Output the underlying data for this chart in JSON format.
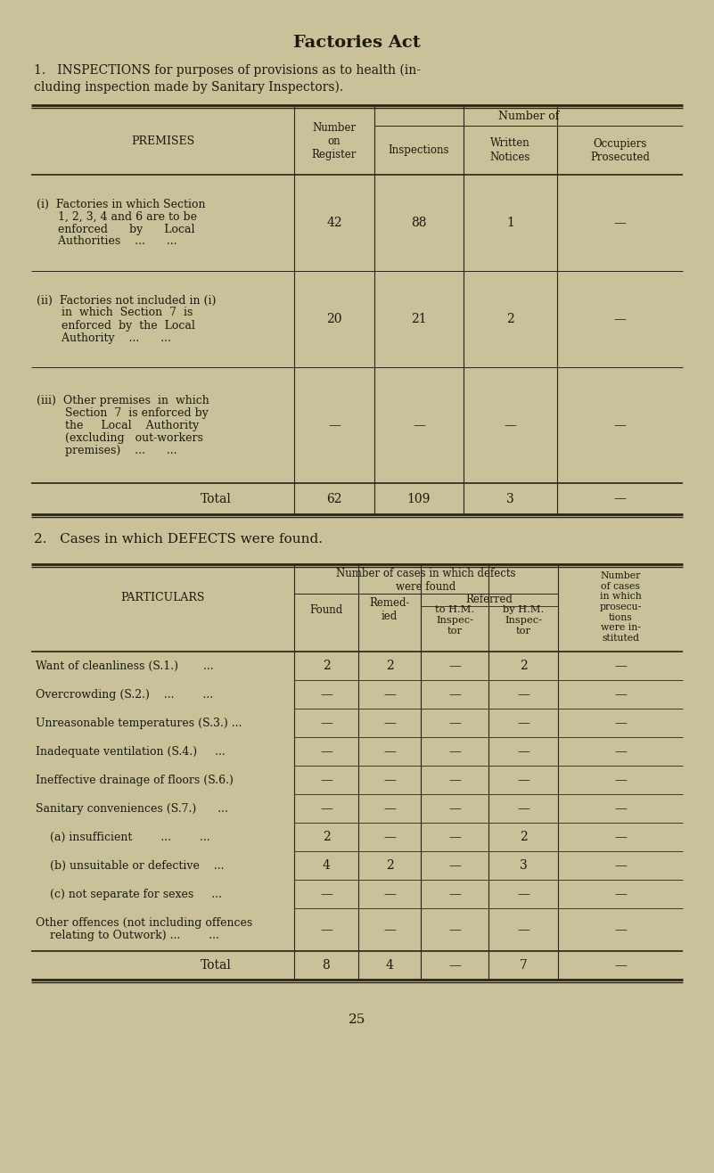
{
  "bg_color": "#c9c19a",
  "text_color": "#1a1a0a",
  "title": "Factories Act",
  "section1_heading_line1": "1.   INSPECTIONS for purposes of provisions as to health (in-",
  "section1_heading_line2": "cluding inspection made by Sanitary Inspectors).",
  "section2_heading": "2.   Cases in which DEFECTS were found.",
  "page_number": "25",
  "table1": {
    "col_header_group": "Number of",
    "row_label_header": "PREMISES",
    "rows": [
      {
        "label_lines": [
          "(i)  Factories in which Section",
          "      1, 2, 3, 4 and 6 are to be",
          "      enforced      by      Local",
          "      Authorities    ...      ..."
        ],
        "values": [
          "42",
          "88",
          "1",
          "—"
        ]
      },
      {
        "label_lines": [
          "(ii)  Factories not included in (i)",
          "       in  which  Section  7  is",
          "       enforced  by  the  Local",
          "       Authority    ...      ..."
        ],
        "values": [
          "20",
          "21",
          "2",
          "—"
        ]
      },
      {
        "label_lines": [
          "(iii)  Other premises  in  which",
          "        Section  7  is enforced by",
          "        the     Local    Authority",
          "        (excluding   out-workers",
          "        premises)    ...      ..."
        ],
        "values": [
          "—",
          "—",
          "—",
          "—"
        ]
      }
    ],
    "total_row": {
      "label": "Total",
      "values": [
        "62",
        "109",
        "3",
        "—"
      ]
    }
  },
  "table2": {
    "col_header_group1": "Number of cases in which defects",
    "col_header_group1b": "were found",
    "col_header_group2_lines": [
      "Number",
      "of cases",
      "in which",
      "prosecu-",
      "tions",
      "were in-",
      "stituted"
    ],
    "referred_label": "Referred",
    "row_label_header": "PARTICULARS",
    "rows": [
      {
        "label_lines": [
          "Want of cleanliness (S.1.)       ..."
        ],
        "values": [
          "2",
          "2",
          "—",
          "2",
          "—"
        ]
      },
      {
        "label_lines": [
          "Overcrowding (S.2.)    ...        ..."
        ],
        "values": [
          "—",
          "—",
          "—",
          "—",
          "—"
        ]
      },
      {
        "label_lines": [
          "Unreasonable temperatures (S.3.) ..."
        ],
        "values": [
          "—",
          "—",
          "—",
          "—",
          "—"
        ]
      },
      {
        "label_lines": [
          "Inadequate ventilation (S.4.)     ..."
        ],
        "values": [
          "—",
          "—",
          "—",
          "—",
          "—"
        ]
      },
      {
        "label_lines": [
          "Ineffective drainage of floors (S.6.)"
        ],
        "values": [
          "—",
          "—",
          "—",
          "—",
          "—"
        ]
      },
      {
        "label_lines": [
          "Sanitary conveniences (S.7.)      ..."
        ],
        "values": [
          "—",
          "—",
          "—",
          "—",
          "—"
        ]
      },
      {
        "label_lines": [
          "    (a) insufficient        ...        ..."
        ],
        "values": [
          "2",
          "—",
          "—",
          "2",
          "—"
        ]
      },
      {
        "label_lines": [
          "    (b) unsuitable or defective    ..."
        ],
        "values": [
          "4",
          "2",
          "—",
          "3",
          "—"
        ]
      },
      {
        "label_lines": [
          "    (c) not separate for sexes     ..."
        ],
        "values": [
          "—",
          "—",
          "—",
          "—",
          "—"
        ]
      },
      {
        "label_lines": [
          "Other offences (not including offences",
          "    relating to Outwork) ...        ..."
        ],
        "values": [
          "—",
          "—",
          "—",
          "—",
          "—"
        ]
      }
    ],
    "total_row": {
      "label": "Total",
      "values": [
        "8",
        "4",
        "—",
        "7",
        "—"
      ]
    }
  }
}
